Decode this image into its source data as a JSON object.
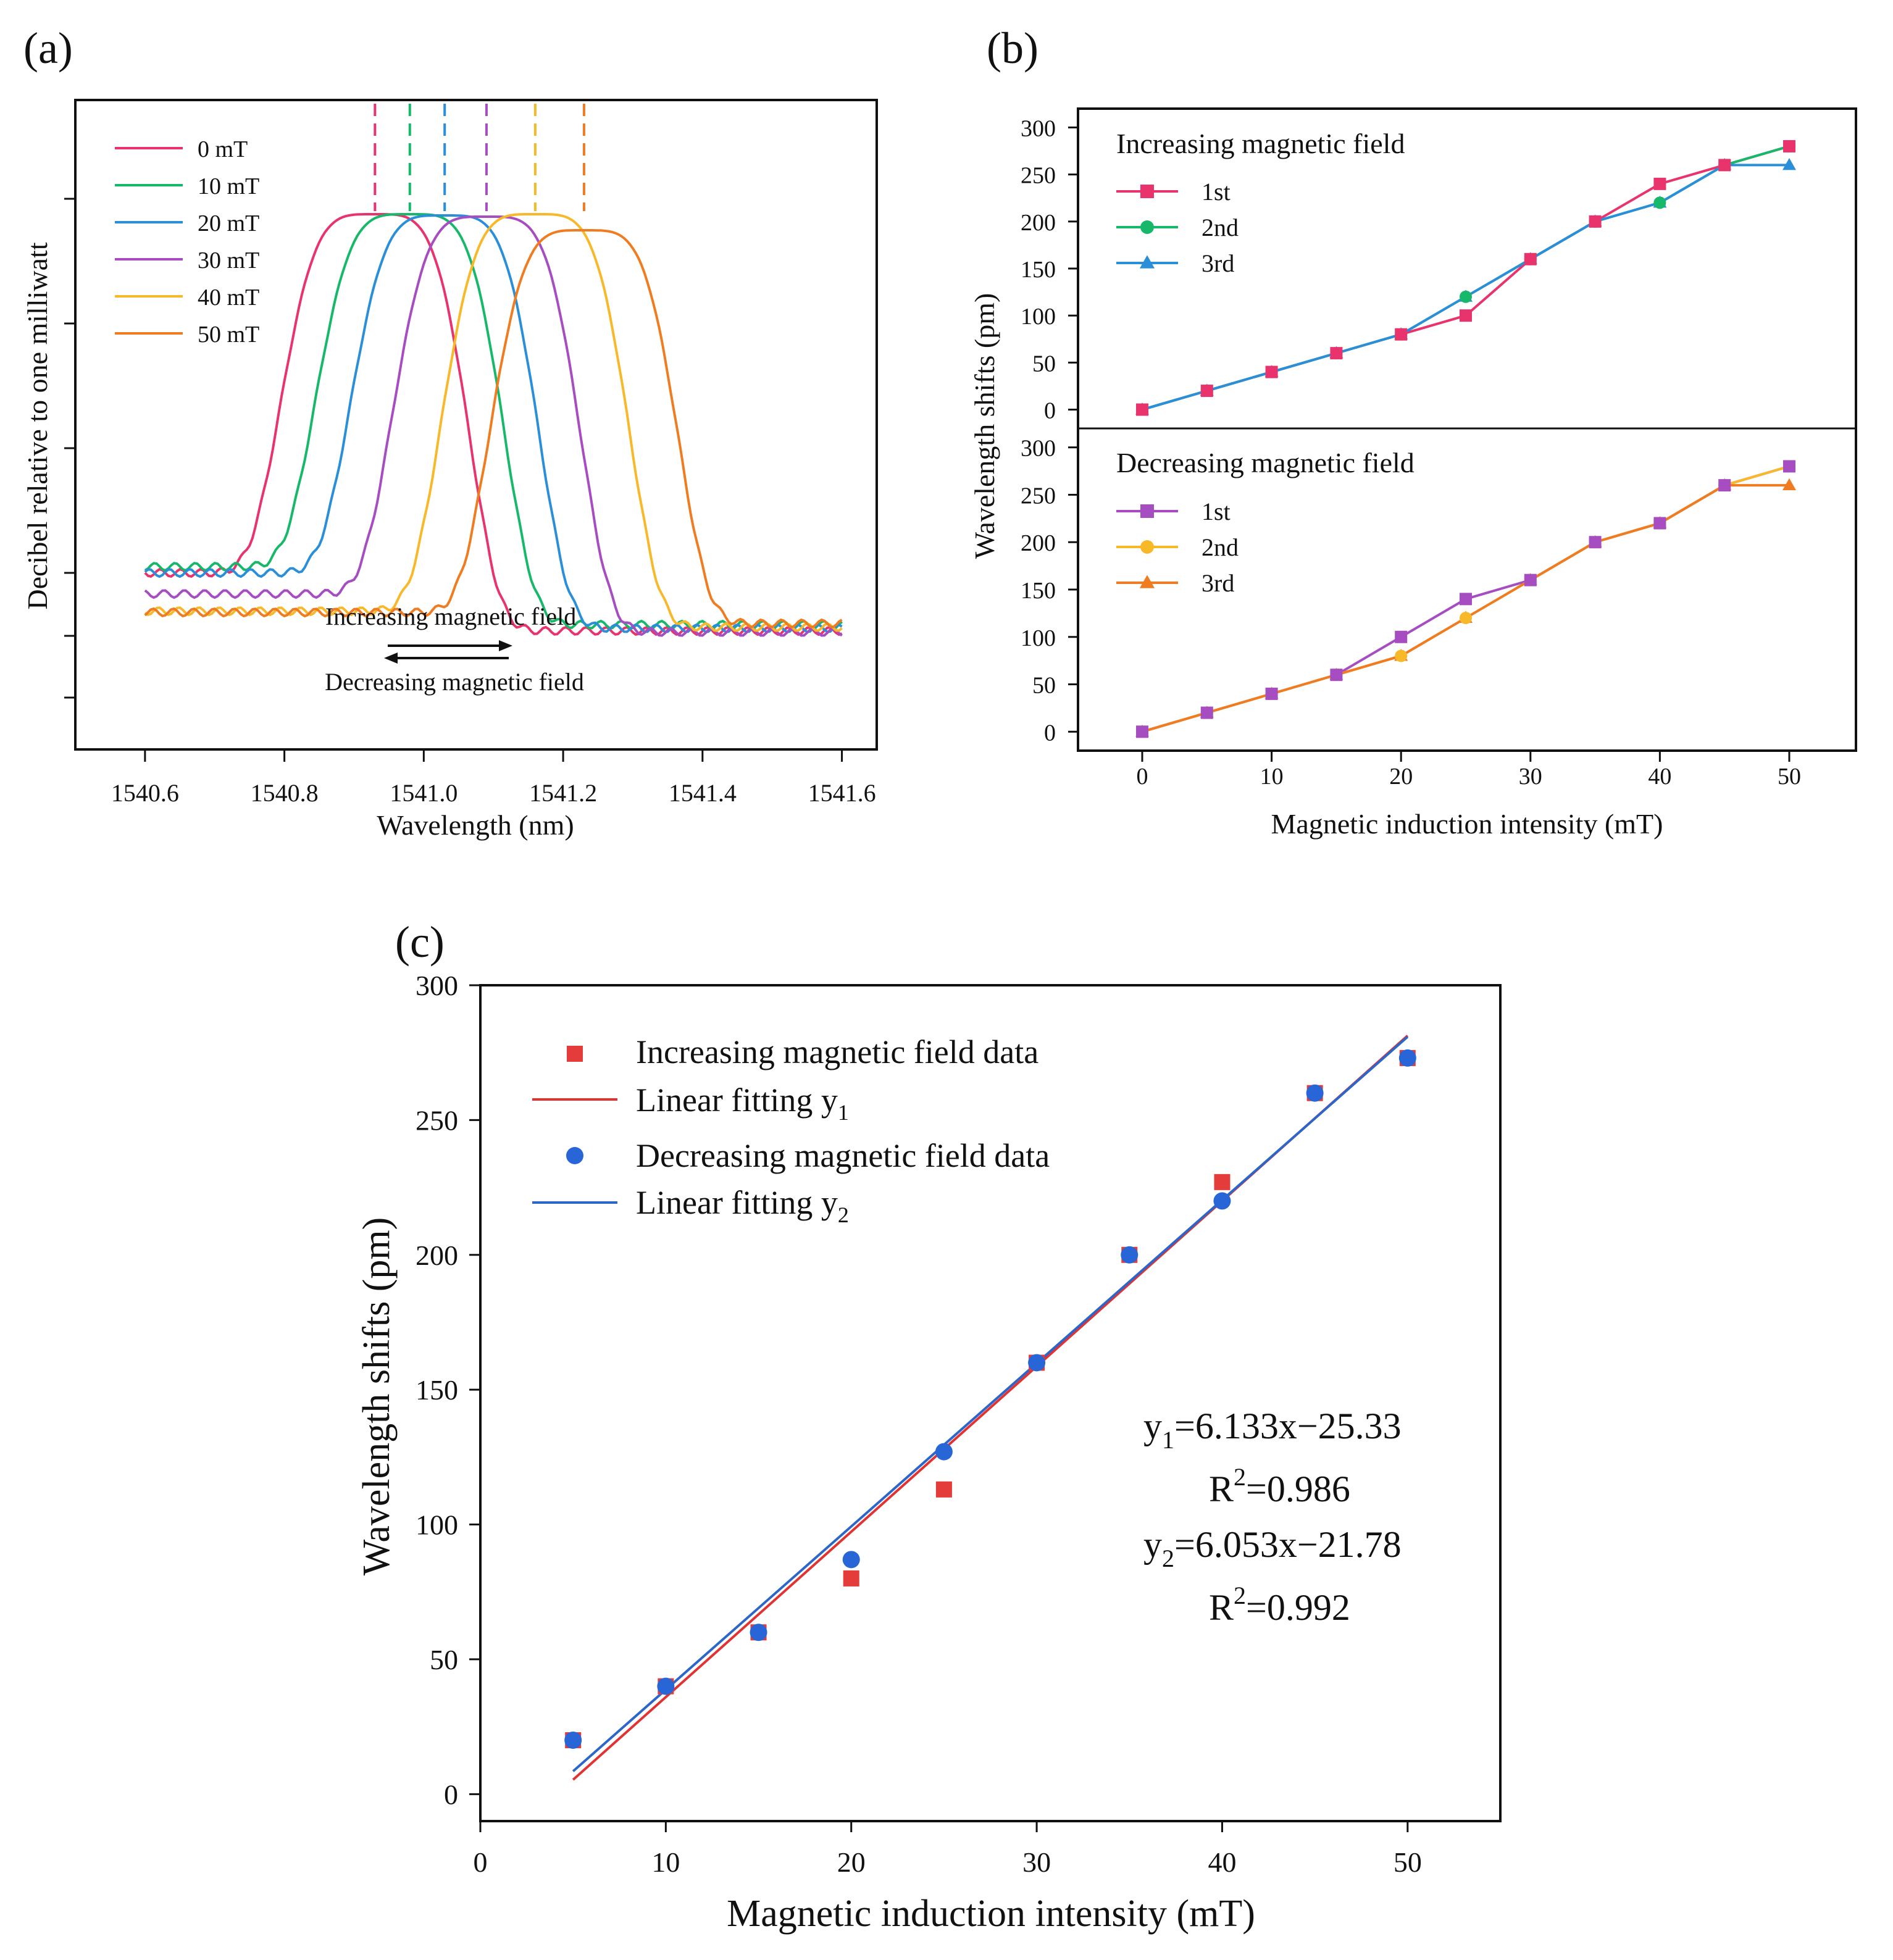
{
  "colors": {
    "c0": "#e8336d",
    "c10": "#17b86a",
    "c20": "#2a8fd8",
    "c30": "#a74dc2",
    "c40": "#f7b92a",
    "c50": "#f07c22",
    "inc_pts": "#e43b3b",
    "inc_line": "#e23232",
    "dec_pts": "#2866d8",
    "dec_line": "#2b66c8",
    "dec_1st": "#a74dc2",
    "dec_2nd": "#f7b92a",
    "dec_3rd": "#f07c22"
  },
  "panel_a": {
    "label": "(a)",
    "xlabel": "Wavelength (nm)",
    "ylabel": "Decibel relative to one milliwatt",
    "xlim": [
      1540.5,
      1541.65
    ],
    "xticks": [
      "1540.6",
      "1540.8",
      "1541.0",
      "1541.2",
      "1541.4",
      "1541.6"
    ],
    "xtick_values": [
      1540.6,
      1540.8,
      1541.0,
      1541.2,
      1541.4,
      1541.6
    ],
    "arrow_label_top": "Increasing magnetic field",
    "arrow_label_bottom": "Decreasing magnetic field",
    "legend": [
      "0  mT",
      "10 mT",
      "20 mT",
      "30 mT",
      "40 mT",
      "50 mT"
    ],
    "peaks": [
      1540.93,
      1540.98,
      1541.03,
      1541.09,
      1541.16,
      1541.23
    ]
  },
  "panel_b": {
    "label": "(b)",
    "xlabel": "Magnetic induction intensity (mT)",
    "ylabel": "Wavelength shifts (pm)",
    "xticks": [
      "0",
      "10",
      "20",
      "30",
      "40",
      "50"
    ],
    "xtick_values": [
      0,
      10,
      20,
      30,
      40,
      50
    ],
    "yticks": [
      "0",
      "50",
      "100",
      "150",
      "200",
      "250",
      "300"
    ],
    "ytick_values": [
      0,
      50,
      100,
      150,
      200,
      250,
      300
    ],
    "top_title": "Increasing magnetic field",
    "bottom_title": "Decreasing magnetic field",
    "legend_labels": [
      "1st",
      "2nd",
      "3rd"
    ]
  },
  "panel_c": {
    "label": "(c)",
    "xlabel": "Magnetic induction intensity (mT)",
    "ylabel": "Wavelength shifts (pm)",
    "xticks": [
      "0",
      "10",
      "20",
      "30",
      "40",
      "50"
    ],
    "xtick_values": [
      0,
      10,
      20,
      30,
      40,
      50
    ],
    "yticks": [
      "0",
      "50",
      "100",
      "150",
      "200",
      "250",
      "300"
    ],
    "ytick_values": [
      0,
      50,
      100,
      150,
      200,
      250,
      300
    ],
    "legend": {
      "inc_data": "Increasing magnetic field data",
      "inc_fit": "Linear fitting y",
      "dec_data": "Decreasing magnetic field data",
      "dec_fit": "Linear fitting y",
      "sub1": "1",
      "sub2": "2"
    },
    "eq1_prefix": "y",
    "eq1_sub": "1",
    "eq1_rest": "=6.133x−25.33",
    "r1_prefix": "R",
    "r1_sup": "2",
    "r1_rest": "=0.986",
    "eq2_prefix": "y",
    "eq2_sub": "2",
    "eq2_rest": "=6.053x−21.78",
    "r2_prefix": "R",
    "r2_sup": "2",
    "r2_rest": "=0.992"
  },
  "chart_data": [
    {
      "type": "line",
      "panel": "(a)",
      "title": "",
      "xlabel": "Wavelength (nm)",
      "ylabel": "Decibel relative to one milliwatt",
      "xlim": [
        1540.5,
        1541.65
      ],
      "series": [
        {
          "name": "0  mT",
          "peak_nm": 1540.93
        },
        {
          "name": "10 mT",
          "peak_nm": 1540.98
        },
        {
          "name": "20 mT",
          "peak_nm": 1541.03
        },
        {
          "name": "30 mT",
          "peak_nm": 1541.09
        },
        {
          "name": "40 mT",
          "peak_nm": 1541.16
        },
        {
          "name": "50 mT",
          "peak_nm": 1541.23
        }
      ]
    },
    {
      "type": "line",
      "panel": "(b) top",
      "title": "Increasing magnetic field",
      "xlabel": "Magnetic induction intensity (mT)",
      "ylabel": "Wavelength shifts (pm)",
      "ylim": [
        -20,
        320
      ],
      "x": [
        0,
        5,
        10,
        15,
        20,
        25,
        30,
        35,
        40,
        45,
        50
      ],
      "series": [
        {
          "name": "1st",
          "values": [
            0,
            20,
            40,
            60,
            80,
            100,
            160,
            200,
            240,
            260,
            280
          ]
        },
        {
          "name": "2nd",
          "values": [
            0,
            20,
            40,
            60,
            80,
            120,
            160,
            200,
            220,
            260,
            280
          ]
        },
        {
          "name": "3rd",
          "values": [
            0,
            20,
            40,
            60,
            80,
            120,
            160,
            200,
            220,
            260,
            260
          ]
        }
      ]
    },
    {
      "type": "line",
      "panel": "(b) bottom",
      "title": "Decreasing magnetic field",
      "xlabel": "Magnetic induction intensity (mT)",
      "ylabel": "Wavelength shifts (pm)",
      "ylim": [
        -20,
        320
      ],
      "x": [
        0,
        5,
        10,
        15,
        20,
        25,
        30,
        35,
        40,
        45,
        50
      ],
      "series": [
        {
          "name": "1st",
          "values": [
            0,
            20,
            40,
            60,
            100,
            140,
            160,
            200,
            220,
            260,
            280
          ]
        },
        {
          "name": "2nd",
          "values": [
            0,
            20,
            40,
            60,
            80,
            120,
            160,
            200,
            220,
            260,
            280
          ]
        },
        {
          "name": "3rd",
          "values": [
            0,
            20,
            40,
            60,
            80,
            120,
            160,
            200,
            220,
            260,
            260
          ]
        }
      ]
    },
    {
      "type": "scatter",
      "panel": "(c)",
      "title": "",
      "xlabel": "Magnetic induction intensity (mT)",
      "ylabel": "Wavelength shifts (pm)",
      "xlim": [
        0,
        55
      ],
      "ylim": [
        -10,
        300
      ],
      "x": [
        5,
        10,
        15,
        20,
        25,
        30,
        35,
        40,
        45,
        50
      ],
      "series": [
        {
          "name": "Increasing magnetic field data",
          "values": [
            20,
            40,
            60,
            80,
            113,
            160,
            200,
            227,
            260,
            273
          ]
        },
        {
          "name": "Decreasing magnetic field data",
          "values": [
            20,
            40,
            60,
            87,
            127,
            160,
            200,
            220,
            260,
            273
          ]
        }
      ],
      "fits": [
        {
          "name": "Linear fitting y1",
          "slope": 6.133,
          "intercept": -25.33,
          "r2": 0.986,
          "x_range": [
            5,
            50
          ]
        },
        {
          "name": "Linear fitting y2",
          "slope": 6.053,
          "intercept": -21.78,
          "r2": 0.992,
          "x_range": [
            5,
            50
          ]
        }
      ]
    }
  ]
}
